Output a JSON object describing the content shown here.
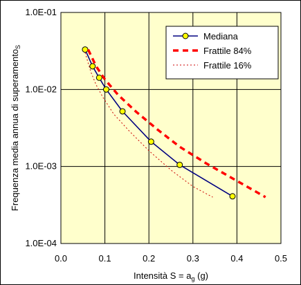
{
  "chart_data": {
    "type": "line",
    "xlabel": "Intensità S = a",
    "xlabel_sub": "g",
    "xlabel_unit": " (g)",
    "ylabel": "Frequenza media annua di superamento",
    "ylabel_sub": "S",
    "xlim": [
      0.0,
      0.5
    ],
    "ylim": [
      0.0001,
      0.1
    ],
    "yscale": "log",
    "x_ticks": [
      "0.0",
      "0.1",
      "0.2",
      "0.3",
      "0.4",
      "0.5"
    ],
    "y_ticks": [
      "1.0E-04",
      "1.0E-03",
      "1.0E-02",
      "1.0E-01"
    ],
    "grid": true,
    "plot_background": "#ffffcc",
    "legend_position": "top-right",
    "series": [
      {
        "name": "Mediana",
        "style": "solid-with-markers",
        "color": "#000080",
        "marker_color": "#ffff00",
        "x": [
          0.055,
          0.072,
          0.087,
          0.103,
          0.14,
          0.205,
          0.27,
          0.39
        ],
        "y": [
          0.033,
          0.02,
          0.0142,
          0.01,
          0.0052,
          0.0021,
          0.00105,
          0.00041
        ]
      },
      {
        "name": "Frattile 84%",
        "style": "dashed",
        "color": "#ff0000",
        "x": [
          0.062,
          0.08,
          0.1,
          0.13,
          0.17,
          0.22,
          0.27,
          0.33,
          0.4,
          0.465
        ],
        "y": [
          0.033,
          0.02,
          0.0135,
          0.0085,
          0.0052,
          0.003,
          0.0018,
          0.0011,
          0.00065,
          0.0004
        ]
      },
      {
        "name": "Frattile 16%",
        "style": "dotted",
        "color": "#cc0000",
        "x": [
          0.055,
          0.068,
          0.08,
          0.095,
          0.12,
          0.155,
          0.2,
          0.25,
          0.3,
          0.345
        ],
        "y": [
          0.03,
          0.017,
          0.0115,
          0.008,
          0.0048,
          0.0029,
          0.0016,
          0.0009,
          0.00055,
          0.0004
        ]
      }
    ]
  }
}
